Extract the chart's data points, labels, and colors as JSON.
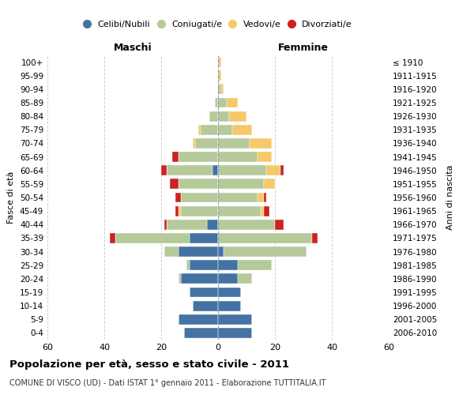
{
  "age_groups": [
    "0-4",
    "5-9",
    "10-14",
    "15-19",
    "20-24",
    "25-29",
    "30-34",
    "35-39",
    "40-44",
    "45-49",
    "50-54",
    "55-59",
    "60-64",
    "65-69",
    "70-74",
    "75-79",
    "80-84",
    "85-89",
    "90-94",
    "95-99",
    "100+"
  ],
  "birth_years": [
    "2006-2010",
    "2001-2005",
    "1996-2000",
    "1991-1995",
    "1986-1990",
    "1981-1985",
    "1976-1980",
    "1971-1975",
    "1966-1970",
    "1961-1965",
    "1956-1960",
    "1951-1955",
    "1946-1950",
    "1941-1945",
    "1936-1940",
    "1931-1935",
    "1926-1930",
    "1921-1925",
    "1916-1920",
    "1911-1915",
    "≤ 1910"
  ],
  "male": {
    "single": [
      12,
      14,
      9,
      10,
      13,
      10,
      14,
      10,
      4,
      0,
      0,
      0,
      2,
      0,
      0,
      0,
      0,
      0,
      0,
      0,
      0
    ],
    "married": [
      0,
      0,
      0,
      0,
      1,
      1,
      5,
      26,
      14,
      13,
      13,
      14,
      16,
      14,
      8,
      6,
      3,
      1,
      0,
      0,
      0
    ],
    "widowed": [
      0,
      0,
      0,
      0,
      0,
      0,
      0,
      0,
      0,
      1,
      0,
      0,
      0,
      0,
      1,
      1,
      0,
      0,
      0,
      0,
      0
    ],
    "divorced": [
      0,
      0,
      0,
      0,
      0,
      0,
      0,
      2,
      1,
      1,
      2,
      3,
      2,
      2,
      0,
      0,
      0,
      0,
      0,
      0,
      0
    ]
  },
  "female": {
    "single": [
      12,
      12,
      8,
      8,
      7,
      7,
      2,
      0,
      0,
      0,
      0,
      0,
      0,
      0,
      0,
      0,
      0,
      0,
      0,
      0,
      0
    ],
    "married": [
      0,
      0,
      0,
      0,
      5,
      12,
      29,
      33,
      20,
      15,
      14,
      16,
      17,
      14,
      11,
      5,
      4,
      3,
      1,
      0,
      0
    ],
    "widowed": [
      0,
      0,
      0,
      0,
      0,
      0,
      0,
      0,
      0,
      1,
      2,
      4,
      5,
      5,
      8,
      7,
      6,
      4,
      1,
      1,
      1
    ],
    "divorced": [
      0,
      0,
      0,
      0,
      0,
      0,
      0,
      2,
      3,
      2,
      1,
      0,
      1,
      0,
      0,
      0,
      0,
      0,
      0,
      0,
      0
    ]
  },
  "colors": {
    "single": "#4472a4",
    "married": "#b5c99a",
    "widowed": "#f5c96a",
    "divorced": "#cc2222"
  },
  "legend_labels": [
    "Celibi/Nubili",
    "Coniugati/e",
    "Vedovi/e",
    "Divorziati/e"
  ],
  "title": "Popolazione per età, sesso e stato civile - 2011",
  "subtitle": "COMUNE DI VISCO (UD) - Dati ISTAT 1° gennaio 2011 - Elaborazione TUTTITALIA.IT",
  "xlabel_left": "Maschi",
  "xlabel_right": "Femmine",
  "ylabel": "Fasce di età",
  "ylabel_right": "Anni di nascita",
  "xlim": 60,
  "background_color": "#ffffff",
  "grid_color": "#cccccc"
}
